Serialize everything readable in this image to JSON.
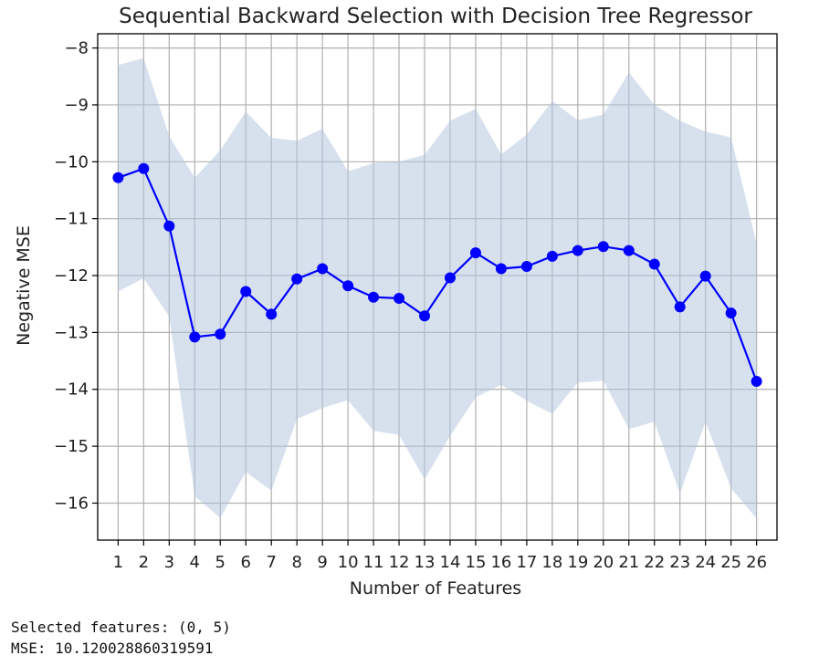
{
  "chart_data": {
    "type": "line",
    "title": "Sequential Backward Selection with Decision Tree Regressor",
    "xlabel": "Number of Features",
    "ylabel": "Negative MSE",
    "x": [
      1,
      2,
      3,
      4,
      5,
      6,
      7,
      8,
      9,
      10,
      11,
      12,
      13,
      14,
      15,
      16,
      17,
      18,
      19,
      20,
      21,
      22,
      23,
      24,
      25,
      26
    ],
    "y": [
      -10.28,
      -10.12,
      -11.13,
      -13.08,
      -13.03,
      -12.28,
      -12.68,
      -12.06,
      -11.88,
      -12.18,
      -12.38,
      -12.4,
      -12.71,
      -12.04,
      -11.6,
      -11.88,
      -11.84,
      -11.66,
      -11.56,
      -11.49,
      -11.56,
      -11.8,
      -12.55,
      -12.01,
      -12.66,
      -13.86
    ],
    "y_upper": [
      -8.3,
      -8.18,
      -9.55,
      -10.28,
      -9.8,
      -9.12,
      -9.58,
      -9.63,
      -9.42,
      -10.17,
      -10.02,
      -10.0,
      -9.88,
      -9.28,
      -9.07,
      -9.87,
      -9.52,
      -8.93,
      -9.27,
      -9.17,
      -8.43,
      -9.0,
      -9.28,
      -9.47,
      -9.57,
      -11.43
    ],
    "y_lower": [
      -12.28,
      -12.05,
      -12.72,
      -15.88,
      -16.26,
      -15.45,
      -15.78,
      -14.52,
      -14.33,
      -14.19,
      -14.73,
      -14.8,
      -15.58,
      -14.82,
      -14.14,
      -13.92,
      -14.2,
      -14.43,
      -13.88,
      -13.85,
      -14.7,
      -14.57,
      -15.83,
      -14.57,
      -15.74,
      -16.27
    ],
    "xlim": [
      0.2,
      26.8
    ],
    "ylim": [
      -16.65,
      -7.75
    ],
    "xticks": [
      1,
      2,
      3,
      4,
      5,
      6,
      7,
      8,
      9,
      10,
      11,
      12,
      13,
      14,
      15,
      16,
      17,
      18,
      19,
      20,
      21,
      22,
      23,
      24,
      25,
      26
    ],
    "yticks": [
      -8,
      -9,
      -10,
      -11,
      -12,
      -13,
      -14,
      -15,
      -16
    ],
    "grid": true,
    "line_color": "#0000ff",
    "band_color": "#b0c4de"
  },
  "output": {
    "selected_features": "Selected features: (0, 5)",
    "mse": "MSE: 10.120028860319591"
  }
}
